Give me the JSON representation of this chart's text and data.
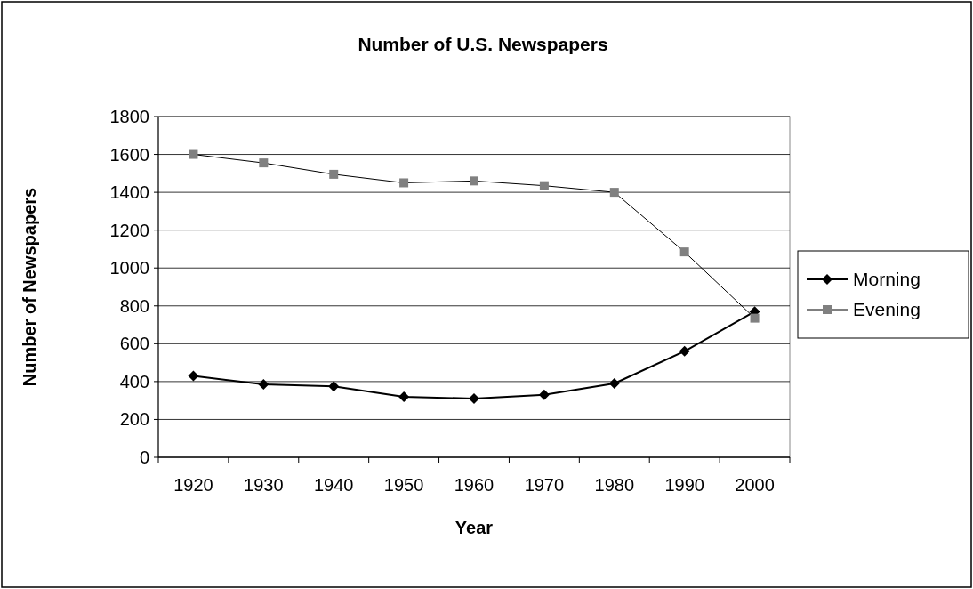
{
  "chart_data": {
    "type": "line",
    "title": "Number of U.S. Newspapers",
    "xlabel": "Year",
    "ylabel": "Number of Newspapers",
    "categories": [
      "1920",
      "1930",
      "1940",
      "1950",
      "1960",
      "1970",
      "1980",
      "1990",
      "2000"
    ],
    "series": [
      {
        "name": "Morning",
        "color": "#000000",
        "marker": "diamond",
        "values": [
          430,
          385,
          375,
          320,
          310,
          330,
          390,
          560,
          770
        ]
      },
      {
        "name": "Evening",
        "color": "#808080",
        "marker": "square",
        "values": [
          1600,
          1555,
          1495,
          1450,
          1460,
          1435,
          1400,
          1085,
          735
        ]
      }
    ],
    "ylim": [
      0,
      1800
    ],
    "yticks": [
      0,
      200,
      400,
      600,
      800,
      1000,
      1200,
      1400,
      1600,
      1800
    ],
    "grid": "y",
    "legend": "right"
  }
}
